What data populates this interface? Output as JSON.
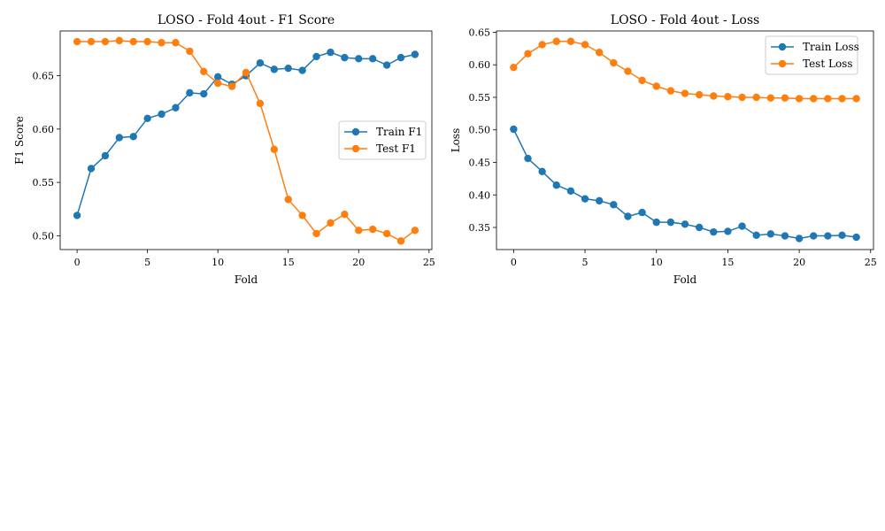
{
  "chart_data": [
    {
      "type": "line",
      "title": "LOSO - Fold 4out - F1 Score",
      "xlabel": "Fold",
      "ylabel": "F1 Score",
      "xlim": [
        -1.2,
        25.2
      ],
      "ylim": [
        0.487,
        0.692
      ],
      "xticks": [
        "0",
        "5",
        "10",
        "15",
        "20",
        "25"
      ],
      "yticks": [
        "0.50",
        "0.55",
        "0.60",
        "0.65"
      ],
      "legend_position": "center-right",
      "grid": false,
      "x": [
        0,
        1,
        2,
        3,
        4,
        5,
        6,
        7,
        8,
        9,
        10,
        11,
        12,
        13,
        14,
        15,
        16,
        17,
        18,
        19,
        20,
        21,
        22,
        23,
        24
      ],
      "series": [
        {
          "name": "Train F1",
          "color": "#1f77b4",
          "values": [
            0.519,
            0.563,
            0.575,
            0.592,
            0.593,
            0.61,
            0.614,
            0.62,
            0.634,
            0.633,
            0.649,
            0.642,
            0.65,
            0.662,
            0.656,
            0.657,
            0.655,
            0.668,
            0.672,
            0.667,
            0.666,
            0.666,
            0.66,
            0.667,
            0.67
          ]
        },
        {
          "name": "Test F1",
          "color": "#ff7f0e",
          "values": [
            0.682,
            0.682,
            0.682,
            0.683,
            0.682,
            0.682,
            0.681,
            0.681,
            0.673,
            0.654,
            0.643,
            0.64,
            0.653,
            0.624,
            0.581,
            0.534,
            0.519,
            0.502,
            0.512,
            0.52,
            0.505,
            0.506,
            0.502,
            0.495,
            0.505
          ]
        }
      ]
    },
    {
      "type": "line",
      "title": "LOSO - Fold 4out - Loss",
      "xlabel": "Fold",
      "ylabel": "Loss",
      "xlim": [
        -1.2,
        25.2
      ],
      "ylim": [
        0.316,
        0.652
      ],
      "xticks": [
        "0",
        "5",
        "10",
        "15",
        "20",
        "25"
      ],
      "yticks": [
        "0.35",
        "0.40",
        "0.45",
        "0.50",
        "0.55",
        "0.60",
        "0.65"
      ],
      "legend_position": "top-right",
      "grid": false,
      "x": [
        0,
        1,
        2,
        3,
        4,
        5,
        6,
        7,
        8,
        9,
        10,
        11,
        12,
        13,
        14,
        15,
        16,
        17,
        18,
        19,
        20,
        21,
        22,
        23,
        24
      ],
      "series": [
        {
          "name": "Train Loss",
          "color": "#1f77b4",
          "values": [
            0.501,
            0.456,
            0.436,
            0.415,
            0.406,
            0.394,
            0.391,
            0.385,
            0.367,
            0.373,
            0.358,
            0.358,
            0.355,
            0.35,
            0.343,
            0.344,
            0.352,
            0.338,
            0.34,
            0.337,
            0.333,
            0.337,
            0.337,
            0.338,
            0.335
          ]
        },
        {
          "name": "Test Loss",
          "color": "#ff7f0e",
          "values": [
            0.596,
            0.617,
            0.631,
            0.636,
            0.636,
            0.631,
            0.619,
            0.603,
            0.59,
            0.576,
            0.567,
            0.56,
            0.556,
            0.554,
            0.552,
            0.551,
            0.55,
            0.55,
            0.549,
            0.549,
            0.548,
            0.548,
            0.548,
            0.548,
            0.548
          ]
        }
      ]
    }
  ]
}
